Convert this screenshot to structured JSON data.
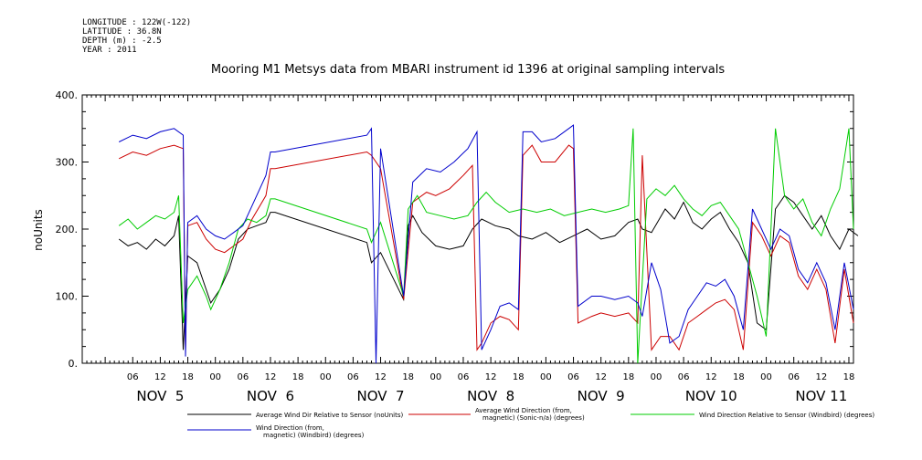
{
  "meta": {
    "longitude": "LONGITUDE : 122W(-122)",
    "latitude": "LATITUDE : 36.8N",
    "depth": "DEPTH (m) : -2.5",
    "year": "YEAR : 2011"
  },
  "chart_data": {
    "type": "line",
    "title": "Mooring M1 Metsys data from MBARI instrument id 1396 at original sampling intervals",
    "ylabel": "noUnits",
    "xlabel": "",
    "ylim": [
      0,
      400
    ],
    "yticks": [
      "0.",
      "100.",
      "200.",
      "300.",
      "400."
    ],
    "x_unit": "hours since NOV 5 00:00",
    "xlim": [
      -5,
      163
    ],
    "xticks": [
      {
        "t": 6,
        "label": "06"
      },
      {
        "t": 12,
        "label": "12"
      },
      {
        "t": 18,
        "label": "18"
      },
      {
        "t": 24,
        "label": "00"
      },
      {
        "t": 30,
        "label": "06"
      },
      {
        "t": 36,
        "label": "12"
      },
      {
        "t": 42,
        "label": "18"
      },
      {
        "t": 48,
        "label": "00"
      },
      {
        "t": 54,
        "label": "06"
      },
      {
        "t": 60,
        "label": "12"
      },
      {
        "t": 66,
        "label": "18"
      },
      {
        "t": 72,
        "label": "00"
      },
      {
        "t": 78,
        "label": "06"
      },
      {
        "t": 84,
        "label": "12"
      },
      {
        "t": 90,
        "label": "18"
      },
      {
        "t": 96,
        "label": "00"
      },
      {
        "t": 102,
        "label": "06"
      },
      {
        "t": 108,
        "label": "12"
      },
      {
        "t": 114,
        "label": "18"
      },
      {
        "t": 120,
        "label": "00"
      },
      {
        "t": 126,
        "label": "06"
      },
      {
        "t": 132,
        "label": "12"
      },
      {
        "t": 138,
        "label": "18"
      },
      {
        "t": 144,
        "label": "00"
      },
      {
        "t": 150,
        "label": "06"
      },
      {
        "t": 156,
        "label": "12"
      },
      {
        "t": 162,
        "label": "18"
      }
    ],
    "day_labels": [
      {
        "t": 12,
        "label": "NOV  5"
      },
      {
        "t": 36,
        "label": "NOV  6"
      },
      {
        "t": 60,
        "label": "NOV  7"
      },
      {
        "t": 84,
        "label": "NOV  8"
      },
      {
        "t": 108,
        "label": "NOV  9"
      },
      {
        "t": 132,
        "label": "NOV 10"
      },
      {
        "t": 156,
        "label": "NOV 11"
      }
    ],
    "series": [
      {
        "name": "Average Wind Dir Relative to Sensor (noUnits)",
        "color": "#000000",
        "points": [
          [
            3,
            185
          ],
          [
            5,
            175
          ],
          [
            7,
            180
          ],
          [
            9,
            170
          ],
          [
            11,
            185
          ],
          [
            13,
            175
          ],
          [
            15,
            190
          ],
          [
            16,
            220
          ],
          [
            17,
            20
          ],
          [
            18,
            160
          ],
          [
            20,
            150
          ],
          [
            22,
            110
          ],
          [
            23,
            90
          ],
          [
            25,
            110
          ],
          [
            27,
            140
          ],
          [
            29,
            185
          ],
          [
            31,
            200
          ],
          [
            33,
            205
          ],
          [
            35,
            210
          ],
          [
            36,
            225
          ],
          [
            37,
            225
          ],
          [
            57,
            180
          ],
          [
            58,
            150
          ],
          [
            60,
            165
          ],
          [
            65,
            95
          ],
          [
            66,
            205
          ],
          [
            67,
            220
          ],
          [
            69,
            195
          ],
          [
            72,
            175
          ],
          [
            75,
            170
          ],
          [
            78,
            175
          ],
          [
            80,
            200
          ],
          [
            82,
            215
          ],
          [
            85,
            205
          ],
          [
            88,
            200
          ],
          [
            90,
            190
          ],
          [
            93,
            185
          ],
          [
            96,
            195
          ],
          [
            99,
            180
          ],
          [
            102,
            190
          ],
          [
            105,
            200
          ],
          [
            108,
            185
          ],
          [
            111,
            190
          ],
          [
            114,
            210
          ],
          [
            116,
            215
          ],
          [
            117,
            200
          ],
          [
            119,
            195
          ],
          [
            122,
            230
          ],
          [
            124,
            215
          ],
          [
            126,
            240
          ],
          [
            128,
            210
          ],
          [
            130,
            200
          ],
          [
            132,
            215
          ],
          [
            134,
            225
          ],
          [
            136,
            200
          ],
          [
            138,
            180
          ],
          [
            140,
            150
          ],
          [
            142,
            60
          ],
          [
            144,
            50
          ],
          [
            146,
            230
          ],
          [
            148,
            250
          ],
          [
            150,
            240
          ],
          [
            152,
            220
          ],
          [
            154,
            200
          ],
          [
            156,
            220
          ],
          [
            158,
            190
          ],
          [
            160,
            170
          ],
          [
            162,
            200
          ],
          [
            164,
            190
          ]
        ]
      },
      {
        "name": "Average Wind Direction (from, magnetic) (Sonic-n/a) (degrees)",
        "color": "#cc0000",
        "points": [
          [
            3,
            305
          ],
          [
            6,
            315
          ],
          [
            9,
            310
          ],
          [
            12,
            320
          ],
          [
            15,
            325
          ],
          [
            17,
            320
          ],
          [
            17.5,
            20
          ],
          [
            18,
            205
          ],
          [
            20,
            210
          ],
          [
            22,
            185
          ],
          [
            24,
            170
          ],
          [
            26,
            165
          ],
          [
            28,
            175
          ],
          [
            30,
            185
          ],
          [
            32,
            215
          ],
          [
            35,
            250
          ],
          [
            36,
            290
          ],
          [
            37,
            290
          ],
          [
            57,
            315
          ],
          [
            58,
            310
          ],
          [
            60,
            290
          ],
          [
            65,
            95
          ],
          [
            67,
            240
          ],
          [
            70,
            255
          ],
          [
            72,
            250
          ],
          [
            75,
            260
          ],
          [
            78,
            280
          ],
          [
            80,
            295
          ],
          [
            81,
            20
          ],
          [
            82,
            30
          ],
          [
            84,
            60
          ],
          [
            86,
            70
          ],
          [
            88,
            65
          ],
          [
            90,
            50
          ],
          [
            91,
            310
          ],
          [
            93,
            325
          ],
          [
            95,
            300
          ],
          [
            98,
            300
          ],
          [
            101,
            325
          ],
          [
            102,
            320
          ],
          [
            103,
            60
          ],
          [
            106,
            70
          ],
          [
            108,
            75
          ],
          [
            111,
            70
          ],
          [
            114,
            75
          ],
          [
            116,
            60
          ],
          [
            117,
            310
          ],
          [
            119,
            20
          ],
          [
            121,
            40
          ],
          [
            123,
            40
          ],
          [
            125,
            20
          ],
          [
            127,
            60
          ],
          [
            129,
            70
          ],
          [
            131,
            80
          ],
          [
            133,
            90
          ],
          [
            135,
            95
          ],
          [
            137,
            80
          ],
          [
            139,
            20
          ],
          [
            141,
            210
          ],
          [
            143,
            190
          ],
          [
            145,
            160
          ],
          [
            147,
            190
          ],
          [
            149,
            180
          ],
          [
            151,
            130
          ],
          [
            153,
            110
          ],
          [
            155,
            140
          ],
          [
            157,
            110
          ],
          [
            159,
            30
          ],
          [
            161,
            140
          ],
          [
            163,
            60
          ]
        ]
      },
      {
        "name": "Wind Direction Relative to Sensor (Windbird) (degrees)",
        "color": "#00cc00",
        "points": [
          [
            3,
            205
          ],
          [
            5,
            215
          ],
          [
            7,
            200
          ],
          [
            9,
            210
          ],
          [
            11,
            220
          ],
          [
            13,
            215
          ],
          [
            15,
            225
          ],
          [
            16,
            250
          ],
          [
            17,
            60
          ],
          [
            18,
            110
          ],
          [
            20,
            130
          ],
          [
            22,
            100
          ],
          [
            23,
            80
          ],
          [
            25,
            110
          ],
          [
            27,
            150
          ],
          [
            29,
            200
          ],
          [
            31,
            215
          ],
          [
            33,
            210
          ],
          [
            35,
            220
          ],
          [
            36,
            245
          ],
          [
            37,
            245
          ],
          [
            57,
            200
          ],
          [
            58,
            180
          ],
          [
            60,
            210
          ],
          [
            65,
            100
          ],
          [
            66,
            230
          ],
          [
            68,
            250
          ],
          [
            70,
            225
          ],
          [
            73,
            220
          ],
          [
            76,
            215
          ],
          [
            79,
            220
          ],
          [
            81,
            240
          ],
          [
            83,
            255
          ],
          [
            85,
            240
          ],
          [
            88,
            225
          ],
          [
            91,
            230
          ],
          [
            94,
            225
          ],
          [
            97,
            230
          ],
          [
            100,
            220
          ],
          [
            103,
            225
          ],
          [
            106,
            230
          ],
          [
            109,
            225
          ],
          [
            112,
            230
          ],
          [
            114,
            235
          ],
          [
            115,
            350
          ],
          [
            116,
            0
          ],
          [
            118,
            245
          ],
          [
            120,
            260
          ],
          [
            122,
            250
          ],
          [
            124,
            265
          ],
          [
            126,
            245
          ],
          [
            128,
            230
          ],
          [
            130,
            220
          ],
          [
            132,
            235
          ],
          [
            134,
            240
          ],
          [
            136,
            220
          ],
          [
            138,
            200
          ],
          [
            140,
            150
          ],
          [
            142,
            100
          ],
          [
            144,
            40
          ],
          [
            146,
            350
          ],
          [
            148,
            250
          ],
          [
            150,
            230
          ],
          [
            152,
            245
          ],
          [
            154,
            210
          ],
          [
            156,
            190
          ],
          [
            158,
            230
          ],
          [
            160,
            260
          ],
          [
            162,
            350
          ],
          [
            163,
            200
          ]
        ]
      },
      {
        "name": "Wind Direction (from, magnetic) (Windbird) (degrees)",
        "color": "#0000cc",
        "points": [
          [
            3,
            330
          ],
          [
            6,
            340
          ],
          [
            9,
            335
          ],
          [
            12,
            345
          ],
          [
            15,
            350
          ],
          [
            17,
            340
          ],
          [
            17.5,
            10
          ],
          [
            18,
            210
          ],
          [
            20,
            220
          ],
          [
            22,
            200
          ],
          [
            24,
            190
          ],
          [
            26,
            185
          ],
          [
            28,
            195
          ],
          [
            30,
            205
          ],
          [
            32,
            235
          ],
          [
            35,
            280
          ],
          [
            36,
            315
          ],
          [
            37,
            315
          ],
          [
            57,
            340
          ],
          [
            58,
            350
          ],
          [
            59,
            0
          ],
          [
            60,
            320
          ],
          [
            65,
            100
          ],
          [
            67,
            270
          ],
          [
            70,
            290
          ],
          [
            73,
            285
          ],
          [
            76,
            300
          ],
          [
            79,
            320
          ],
          [
            81,
            345
          ],
          [
            82,
            20
          ],
          [
            84,
            50
          ],
          [
            86,
            85
          ],
          [
            88,
            90
          ],
          [
            90,
            80
          ],
          [
            91,
            345
          ],
          [
            93,
            345
          ],
          [
            95,
            330
          ],
          [
            98,
            335
          ],
          [
            101,
            350
          ],
          [
            102,
            355
          ],
          [
            103,
            85
          ],
          [
            106,
            100
          ],
          [
            108,
            100
          ],
          [
            111,
            95
          ],
          [
            114,
            100
          ],
          [
            116,
            90
          ],
          [
            117,
            70
          ],
          [
            119,
            150
          ],
          [
            121,
            110
          ],
          [
            123,
            30
          ],
          [
            125,
            40
          ],
          [
            127,
            80
          ],
          [
            129,
            100
          ],
          [
            131,
            120
          ],
          [
            133,
            115
          ],
          [
            135,
            125
          ],
          [
            137,
            100
          ],
          [
            139,
            50
          ],
          [
            141,
            230
          ],
          [
            143,
            200
          ],
          [
            145,
            170
          ],
          [
            147,
            200
          ],
          [
            149,
            190
          ],
          [
            151,
            140
          ],
          [
            153,
            120
          ],
          [
            155,
            150
          ],
          [
            157,
            120
          ],
          [
            159,
            50
          ],
          [
            161,
            150
          ],
          [
            163,
            80
          ]
        ]
      }
    ]
  }
}
